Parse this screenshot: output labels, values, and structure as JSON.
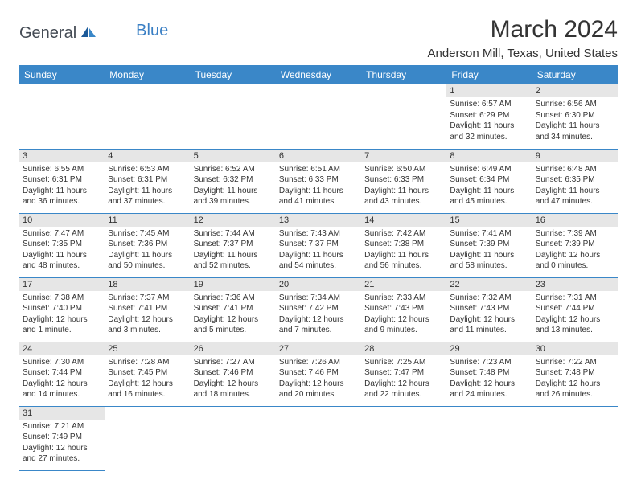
{
  "logo": {
    "general": "General",
    "blue": "Blue"
  },
  "title": "March 2024",
  "location": "Anderson Mill, Texas, United States",
  "colors": {
    "header_bg": "#3a87c8",
    "header_fg": "#ffffff",
    "daynum_bg": "#e6e6e6",
    "border": "#3a87c8",
    "logo_general": "#444b54",
    "logo_blue": "#3a7fc4"
  },
  "day_headers": [
    "Sunday",
    "Monday",
    "Tuesday",
    "Wednesday",
    "Thursday",
    "Friday",
    "Saturday"
  ],
  "weeks": [
    [
      null,
      null,
      null,
      null,
      null,
      {
        "n": "1",
        "sr": "6:57 AM",
        "ss": "6:29 PM",
        "dl": "11 hours and 32 minutes."
      },
      {
        "n": "2",
        "sr": "6:56 AM",
        "ss": "6:30 PM",
        "dl": "11 hours and 34 minutes."
      }
    ],
    [
      {
        "n": "3",
        "sr": "6:55 AM",
        "ss": "6:31 PM",
        "dl": "11 hours and 36 minutes."
      },
      {
        "n": "4",
        "sr": "6:53 AM",
        "ss": "6:31 PM",
        "dl": "11 hours and 37 minutes."
      },
      {
        "n": "5",
        "sr": "6:52 AM",
        "ss": "6:32 PM",
        "dl": "11 hours and 39 minutes."
      },
      {
        "n": "6",
        "sr": "6:51 AM",
        "ss": "6:33 PM",
        "dl": "11 hours and 41 minutes."
      },
      {
        "n": "7",
        "sr": "6:50 AM",
        "ss": "6:33 PM",
        "dl": "11 hours and 43 minutes."
      },
      {
        "n": "8",
        "sr": "6:49 AM",
        "ss": "6:34 PM",
        "dl": "11 hours and 45 minutes."
      },
      {
        "n": "9",
        "sr": "6:48 AM",
        "ss": "6:35 PM",
        "dl": "11 hours and 47 minutes."
      }
    ],
    [
      {
        "n": "10",
        "sr": "7:47 AM",
        "ss": "7:35 PM",
        "dl": "11 hours and 48 minutes."
      },
      {
        "n": "11",
        "sr": "7:45 AM",
        "ss": "7:36 PM",
        "dl": "11 hours and 50 minutes."
      },
      {
        "n": "12",
        "sr": "7:44 AM",
        "ss": "7:37 PM",
        "dl": "11 hours and 52 minutes."
      },
      {
        "n": "13",
        "sr": "7:43 AM",
        "ss": "7:37 PM",
        "dl": "11 hours and 54 minutes."
      },
      {
        "n": "14",
        "sr": "7:42 AM",
        "ss": "7:38 PM",
        "dl": "11 hours and 56 minutes."
      },
      {
        "n": "15",
        "sr": "7:41 AM",
        "ss": "7:39 PM",
        "dl": "11 hours and 58 minutes."
      },
      {
        "n": "16",
        "sr": "7:39 AM",
        "ss": "7:39 PM",
        "dl": "12 hours and 0 minutes."
      }
    ],
    [
      {
        "n": "17",
        "sr": "7:38 AM",
        "ss": "7:40 PM",
        "dl": "12 hours and 1 minute."
      },
      {
        "n": "18",
        "sr": "7:37 AM",
        "ss": "7:41 PM",
        "dl": "12 hours and 3 minutes."
      },
      {
        "n": "19",
        "sr": "7:36 AM",
        "ss": "7:41 PM",
        "dl": "12 hours and 5 minutes."
      },
      {
        "n": "20",
        "sr": "7:34 AM",
        "ss": "7:42 PM",
        "dl": "12 hours and 7 minutes."
      },
      {
        "n": "21",
        "sr": "7:33 AM",
        "ss": "7:43 PM",
        "dl": "12 hours and 9 minutes."
      },
      {
        "n": "22",
        "sr": "7:32 AM",
        "ss": "7:43 PM",
        "dl": "12 hours and 11 minutes."
      },
      {
        "n": "23",
        "sr": "7:31 AM",
        "ss": "7:44 PM",
        "dl": "12 hours and 13 minutes."
      }
    ],
    [
      {
        "n": "24",
        "sr": "7:30 AM",
        "ss": "7:44 PM",
        "dl": "12 hours and 14 minutes."
      },
      {
        "n": "25",
        "sr": "7:28 AM",
        "ss": "7:45 PM",
        "dl": "12 hours and 16 minutes."
      },
      {
        "n": "26",
        "sr": "7:27 AM",
        "ss": "7:46 PM",
        "dl": "12 hours and 18 minutes."
      },
      {
        "n": "27",
        "sr": "7:26 AM",
        "ss": "7:46 PM",
        "dl": "12 hours and 20 minutes."
      },
      {
        "n": "28",
        "sr": "7:25 AM",
        "ss": "7:47 PM",
        "dl": "12 hours and 22 minutes."
      },
      {
        "n": "29",
        "sr": "7:23 AM",
        "ss": "7:48 PM",
        "dl": "12 hours and 24 minutes."
      },
      {
        "n": "30",
        "sr": "7:22 AM",
        "ss": "7:48 PM",
        "dl": "12 hours and 26 minutes."
      }
    ],
    [
      {
        "n": "31",
        "sr": "7:21 AM",
        "ss": "7:49 PM",
        "dl": "12 hours and 27 minutes."
      },
      null,
      null,
      null,
      null,
      null,
      null
    ]
  ],
  "labels": {
    "sunrise": "Sunrise:",
    "sunset": "Sunset:",
    "daylight": "Daylight:"
  }
}
